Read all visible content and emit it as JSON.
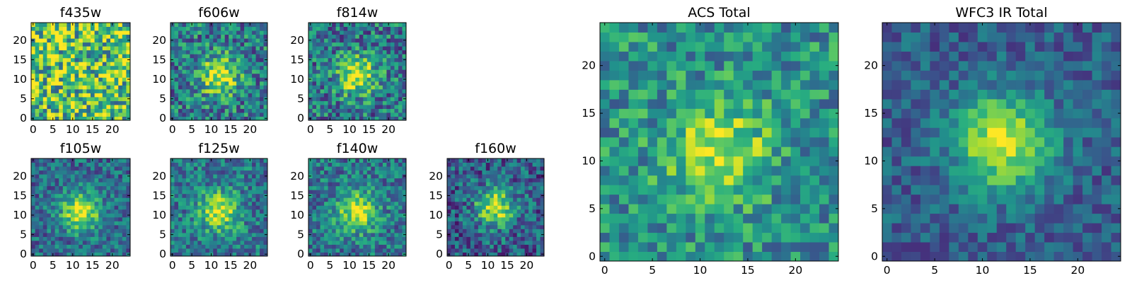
{
  "chart_data": [
    {
      "type": "heatmap",
      "title": "f435w",
      "grid_size": 25,
      "xlim": [
        -0.5,
        24.5
      ],
      "ylim": [
        -0.5,
        24.5
      ],
      "xticks": [
        0,
        5,
        10,
        15,
        20
      ],
      "yticks": [
        0,
        5,
        10,
        15,
        20
      ],
      "colormap": "viridis",
      "source_peak": [
        12,
        11
      ],
      "source_strength": 0.0,
      "noise_level": 0.42,
      "base_level": 0.72,
      "seed": 11,
      "grid": false
    },
    {
      "type": "heatmap",
      "title": "f606w",
      "grid_size": 25,
      "xlim": [
        -0.5,
        24.5
      ],
      "ylim": [
        -0.5,
        24.5
      ],
      "xticks": [
        0,
        5,
        10,
        15,
        20
      ],
      "yticks": [
        0,
        5,
        10,
        15,
        20
      ],
      "colormap": "viridis",
      "source_peak": [
        12,
        11
      ],
      "source_strength": 0.55,
      "noise_level": 0.3,
      "base_level": 0.42,
      "seed": 23,
      "grid": false
    },
    {
      "type": "heatmap",
      "title": "f814w",
      "grid_size": 25,
      "xlim": [
        -0.5,
        24.5
      ],
      "ylim": [
        -0.5,
        24.5
      ],
      "xticks": [
        0,
        5,
        10,
        15,
        20
      ],
      "yticks": [
        0,
        5,
        10,
        15,
        20
      ],
      "colormap": "viridis",
      "source_peak": [
        12,
        11
      ],
      "source_strength": 0.55,
      "noise_level": 0.3,
      "base_level": 0.4,
      "seed": 37,
      "grid": false
    },
    {
      "type": "heatmap",
      "title": "f105w",
      "grid_size": 25,
      "xlim": [
        -0.5,
        24.5
      ],
      "ylim": [
        -0.5,
        24.5
      ],
      "xticks": [
        0,
        5,
        10,
        15,
        20
      ],
      "yticks": [
        0,
        5,
        10,
        15,
        20
      ],
      "colormap": "viridis",
      "source_peak": [
        12,
        11
      ],
      "source_strength": 0.6,
      "noise_level": 0.22,
      "base_level": 0.35,
      "seed": 41,
      "grid": false
    },
    {
      "type": "heatmap",
      "title": "f125w",
      "grid_size": 25,
      "xlim": [
        -0.5,
        24.5
      ],
      "ylim": [
        -0.5,
        24.5
      ],
      "xticks": [
        0,
        5,
        10,
        15,
        20
      ],
      "yticks": [
        0,
        5,
        10,
        15,
        20
      ],
      "colormap": "viridis",
      "source_peak": [
        12,
        11
      ],
      "source_strength": 0.55,
      "noise_level": 0.24,
      "base_level": 0.4,
      "seed": 53,
      "grid": false
    },
    {
      "type": "heatmap",
      "title": "f140w",
      "grid_size": 25,
      "xlim": [
        -0.5,
        24.5
      ],
      "ylim": [
        -0.5,
        24.5
      ],
      "xticks": [
        0,
        5,
        10,
        15,
        20
      ],
      "yticks": [
        0,
        5,
        10,
        15,
        20
      ],
      "colormap": "viridis",
      "source_peak": [
        12,
        11
      ],
      "source_strength": 0.55,
      "noise_level": 0.24,
      "base_level": 0.4,
      "seed": 67,
      "grid": false
    },
    {
      "type": "heatmap",
      "title": "f160w",
      "grid_size": 25,
      "xlim": [
        -0.5,
        24.5
      ],
      "ylim": [
        -0.5,
        24.5
      ],
      "xticks": [
        0,
        5,
        10,
        15,
        20
      ],
      "yticks": [
        0,
        5,
        10,
        15,
        20
      ],
      "colormap": "viridis",
      "source_peak": [
        12,
        12
      ],
      "source_strength": 0.62,
      "noise_level": 0.26,
      "base_level": 0.3,
      "seed": 79,
      "grid": false
    },
    {
      "type": "heatmap",
      "title": "ACS Total",
      "grid_size": 25,
      "xlim": [
        -0.5,
        24.5
      ],
      "ylim": [
        -0.5,
        24.5
      ],
      "xticks": [
        0,
        5,
        10,
        15,
        20
      ],
      "yticks": [
        0,
        5,
        10,
        15,
        20
      ],
      "colormap": "viridis",
      "source_peak": [
        12,
        11
      ],
      "source_strength": 0.45,
      "noise_level": 0.24,
      "base_level": 0.5,
      "seed": 83,
      "grid": false
    },
    {
      "type": "heatmap",
      "title": "WFC3 IR Total",
      "grid_size": 25,
      "xlim": [
        -0.5,
        24.5
      ],
      "ylim": [
        -0.5,
        24.5
      ],
      "xticks": [
        0,
        5,
        10,
        15,
        20
      ],
      "yticks": [
        0,
        5,
        10,
        15,
        20
      ],
      "colormap": "viridis",
      "source_peak": [
        12,
        12
      ],
      "source_strength": 0.65,
      "noise_level": 0.16,
      "base_level": 0.3,
      "seed": 97,
      "grid": false
    }
  ]
}
